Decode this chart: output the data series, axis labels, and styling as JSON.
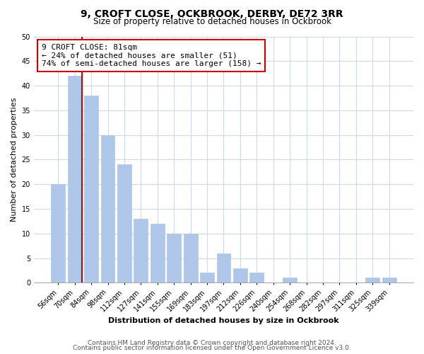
{
  "title": "9, CROFT CLOSE, OCKBROOK, DERBY, DE72 3RR",
  "subtitle": "Size of property relative to detached houses in Ockbrook",
  "xlabel": "Distribution of detached houses by size in Ockbrook",
  "ylabel": "Number of detached properties",
  "bar_labels": [
    "56sqm",
    "70sqm",
    "84sqm",
    "98sqm",
    "112sqm",
    "127sqm",
    "141sqm",
    "155sqm",
    "169sqm",
    "183sqm",
    "197sqm",
    "212sqm",
    "226sqm",
    "240sqm",
    "254sqm",
    "268sqm",
    "282sqm",
    "297sqm",
    "311sqm",
    "325sqm",
    "339sqm"
  ],
  "bar_values": [
    20,
    42,
    38,
    30,
    24,
    13,
    12,
    10,
    10,
    2,
    6,
    3,
    2,
    0,
    1,
    0,
    0,
    0,
    0,
    1,
    1
  ],
  "bar_color": "#aec6e8",
  "bar_edge_color": "#aec6e8",
  "marker_line_color": "#cc0000",
  "annotation_title": "9 CROFT CLOSE: 81sqm",
  "annotation_line2": "← 24% of detached houses are smaller (51)",
  "annotation_line3": "74% of semi-detached houses are larger (158) →",
  "annotation_box_color": "#ffffff",
  "annotation_box_edge_color": "#cc0000",
  "ylim": [
    0,
    50
  ],
  "yticks": [
    0,
    5,
    10,
    15,
    20,
    25,
    30,
    35,
    40,
    45,
    50
  ],
  "footer_line1": "Contains HM Land Registry data © Crown copyright and database right 2024.",
  "footer_line2": "Contains public sector information licensed under the Open Government Licence v3.0.",
  "background_color": "#ffffff",
  "grid_color": "#d0d8e8",
  "title_fontsize": 10,
  "subtitle_fontsize": 8.5,
  "axis_label_fontsize": 8,
  "tick_fontsize": 7,
  "annotation_fontsize": 8,
  "footer_fontsize": 6.5
}
